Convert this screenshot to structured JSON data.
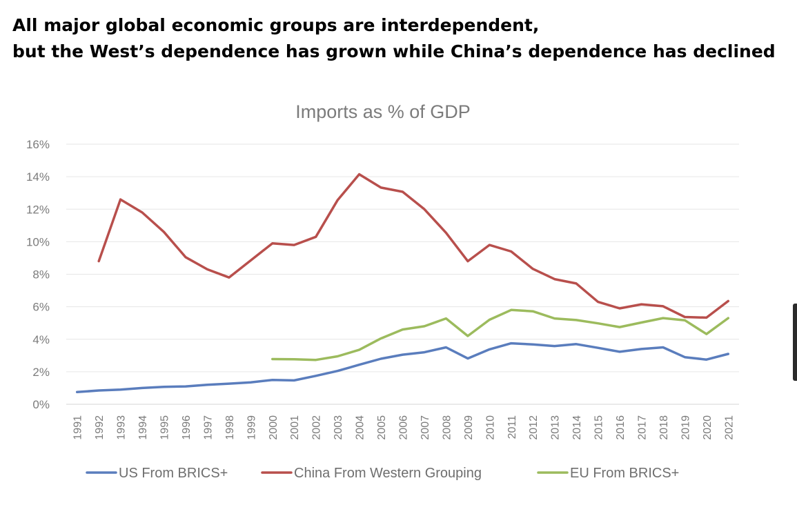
{
  "headline": {
    "line1": "All major global economic groups are interdependent,",
    "line2": "but the West’s dependence has grown while China’s dependence has declined"
  },
  "chart_data": {
    "type": "line",
    "title": "Imports as % of GDP",
    "xlabel": "",
    "ylabel": "",
    "ylim": [
      0,
      16
    ],
    "y_ticks": [
      "0%",
      "2%",
      "4%",
      "6%",
      "8%",
      "10%",
      "12%",
      "14%",
      "16%"
    ],
    "y_tick_values": [
      0,
      2,
      4,
      6,
      8,
      10,
      12,
      14,
      16
    ],
    "grid": true,
    "legend_position": "bottom",
    "categories": [
      "1991",
      "1992",
      "1993",
      "1994",
      "1995",
      "1996",
      "1997",
      "1998",
      "1999",
      "2000",
      "2001",
      "2002",
      "2003",
      "2004",
      "2005",
      "2006",
      "2007",
      "2008",
      "2009",
      "2010",
      "2011",
      "2012",
      "2013",
      "2014",
      "2015",
      "2016",
      "2017",
      "2018",
      "2019",
      "2020",
      "2021"
    ],
    "series": [
      {
        "name": "US From BRICS+",
        "color": "#5a7dbd",
        "values": [
          0.75,
          0.85,
          0.9,
          1.0,
          1.07,
          1.1,
          1.2,
          1.27,
          1.35,
          1.5,
          1.47,
          1.75,
          2.05,
          2.43,
          2.8,
          3.05,
          3.2,
          3.5,
          2.82,
          3.38,
          3.75,
          3.68,
          3.58,
          3.7,
          3.47,
          3.23,
          3.4,
          3.5,
          2.9,
          2.75,
          3.1
        ]
      },
      {
        "name": "China From Western Grouping",
        "color": "#b84f4c",
        "values": [
          null,
          8.8,
          12.6,
          11.8,
          10.6,
          9.05,
          8.3,
          7.8,
          8.85,
          9.9,
          9.8,
          10.3,
          12.55,
          14.15,
          13.33,
          13.07,
          12.0,
          10.55,
          8.8,
          9.8,
          9.4,
          8.33,
          7.7,
          7.43,
          6.3,
          5.9,
          6.15,
          6.03,
          5.37,
          5.33,
          6.35
        ]
      },
      {
        "name": "EU From BRICS+",
        "color": "#9cbb5d",
        "values": [
          null,
          null,
          null,
          null,
          null,
          null,
          null,
          null,
          null,
          2.78,
          2.77,
          2.73,
          2.95,
          3.35,
          4.05,
          4.6,
          4.8,
          5.28,
          4.2,
          5.2,
          5.8,
          5.72,
          5.28,
          5.18,
          4.98,
          4.75,
          5.03,
          5.3,
          5.17,
          4.32,
          5.3
        ]
      }
    ]
  }
}
